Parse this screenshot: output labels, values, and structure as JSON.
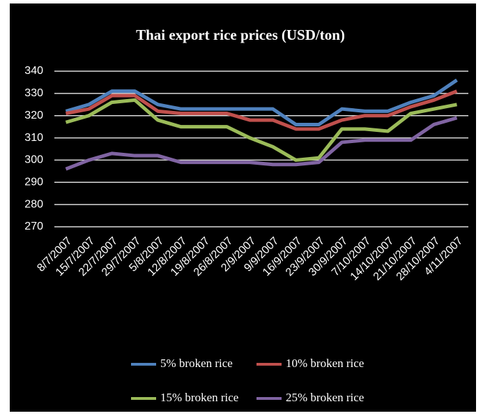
{
  "chart_data": {
    "type": "line",
    "title": "Thai export rice prices (USD/ton)",
    "categories": [
      "8/7/2007",
      "15/7/2007",
      "22/7/2007",
      "29/7/2007",
      "5/8/2007",
      "12/8/2007",
      "19/8/2007",
      "26/8/2007",
      "2/9/2007",
      "9/9/2007",
      "16/9/2007",
      "23/9/2007",
      "30/9/2007",
      "7/10/2007",
      "14/10/2007",
      "21/10/2007",
      "28/10/2007",
      "4/11/2007"
    ],
    "series": [
      {
        "name": "5% broken rice",
        "color": "#4f81bd",
        "values": [
          322,
          325,
          331,
          331,
          325,
          323,
          323,
          323,
          323,
          323,
          316,
          316,
          323,
          322,
          322,
          326,
          329,
          336
        ]
      },
      {
        "name": "10% broken rice",
        "color": "#c0504d",
        "values": [
          321,
          323,
          329,
          329,
          322,
          321,
          321,
          321,
          318,
          318,
          314,
          314,
          318,
          320,
          320,
          324,
          327,
          331
        ]
      },
      {
        "name": "15% broken rice",
        "color": "#9bbb59",
        "values": [
          317,
          320,
          326,
          327,
          318,
          315,
          315,
          315,
          310,
          306,
          300,
          301,
          314,
          314,
          313,
          321,
          323,
          325
        ]
      },
      {
        "name": "25% broken rice",
        "color": "#8064a2",
        "values": [
          296,
          300,
          303,
          302,
          302,
          299,
          299,
          299,
          299,
          298,
          298,
          299,
          308,
          309,
          309,
          309,
          316,
          319
        ]
      }
    ],
    "ylim": [
      270,
      340
    ],
    "yticks": [
      270,
      280,
      290,
      300,
      310,
      320,
      330,
      340
    ],
    "grid": true
  }
}
